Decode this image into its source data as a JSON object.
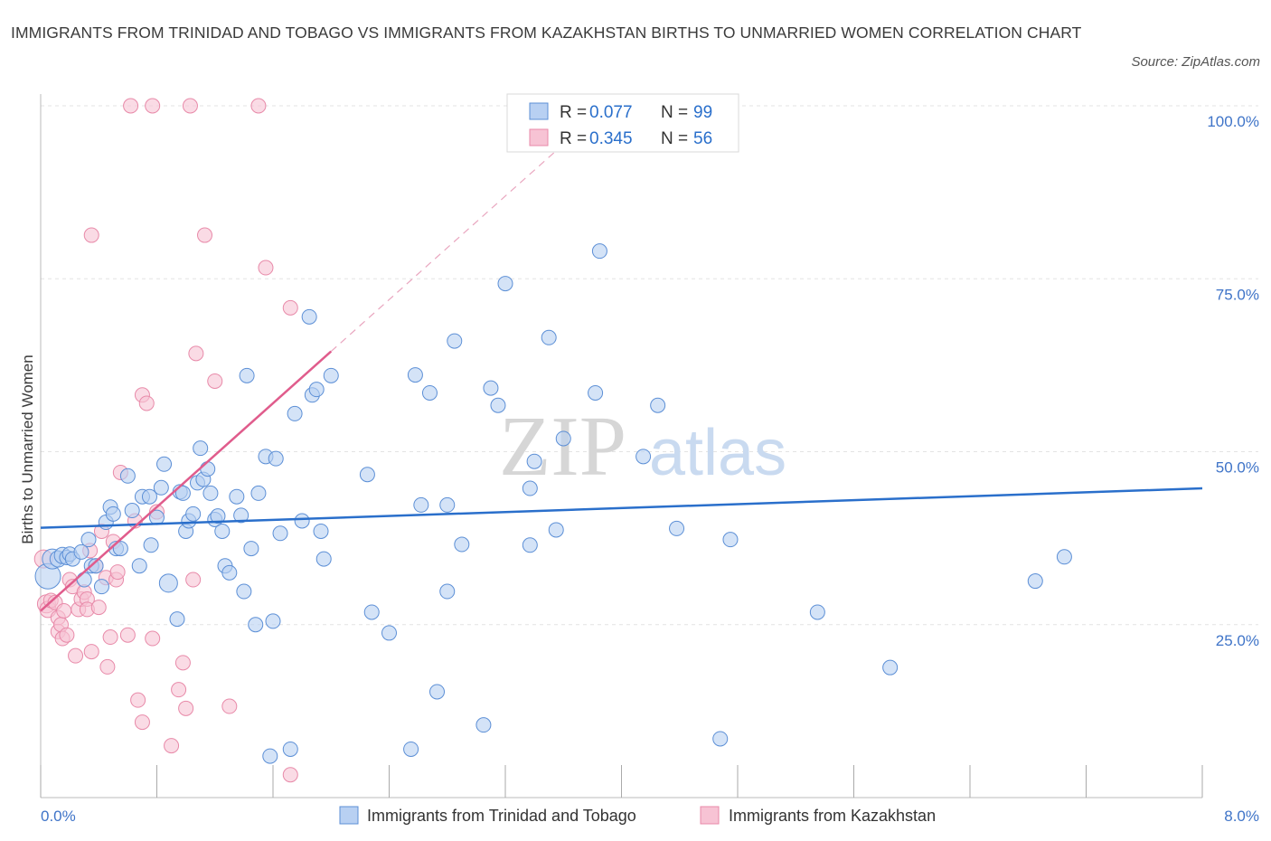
{
  "title": "IMMIGRANTS FROM TRINIDAD AND TOBAGO VS IMMIGRANTS FROM KAZAKHSTAN BIRTHS TO UNMARRIED WOMEN CORRELATION CHART",
  "source": "Source: ZipAtlas.com",
  "watermark": {
    "zip": "ZIP",
    "atlas": "atlas"
  },
  "colors": {
    "blue": "#2a6fcb",
    "blue_fill": "#b8d0f2",
    "blue_stroke": "#5c8fd6",
    "pink": "#e05c8c",
    "pink_fill": "#f7c3d4",
    "pink_stroke": "#e88aa9",
    "tick_text": "#3f74c8"
  },
  "legend_stats": [
    {
      "series": "Immigrants from Trinidad and Tobago",
      "r_label": "R =",
      "r": "0.077",
      "n_label": "N =",
      "n": "99"
    },
    {
      "series": "Immigrants from Kazakhstan",
      "r_label": "R =",
      "r": "0.345",
      "n_label": "N =",
      "n": "56"
    }
  ],
  "chart_data": {
    "type": "scatter",
    "title": "IMMIGRANTS FROM TRINIDAD AND TOBAGO VS IMMIGRANTS FROM KAZAKHSTAN BIRTHS TO UNMARRIED WOMEN CORRELATION CHART",
    "xlabel": "",
    "ylabel": "Births to Unmarried Women",
    "xlim": [
      0,
      8
    ],
    "ylim": [
      0,
      100
    ],
    "x_tick_labels": [
      "0.0%",
      "8.0%"
    ],
    "y_tick_labels": [
      "25.0%",
      "50.0%",
      "75.0%",
      "100.0%"
    ],
    "grid": true,
    "legend": "bottom-center",
    "series": [
      {
        "name": "Immigrants from Trinidad and Tobago",
        "color": "#2a6fcb",
        "trend": {
          "x": [
            0,
            8
          ],
          "y": [
            39.0,
            44.7
          ]
        },
        "points": [
          [
            0.05,
            32,
            14
          ],
          [
            0.08,
            34.5,
            11
          ],
          [
            0.12,
            34.5,
            9
          ],
          [
            0.15,
            35,
            9
          ],
          [
            0.18,
            34.7,
            8
          ],
          [
            0.2,
            35.2,
            8
          ],
          [
            0.22,
            34.5,
            8
          ],
          [
            0.28,
            35.5,
            8
          ],
          [
            0.3,
            31.5,
            8
          ],
          [
            0.33,
            37.3,
            8
          ],
          [
            0.35,
            33.5,
            8
          ],
          [
            0.38,
            33.5,
            8
          ],
          [
            0.42,
            30.5,
            8
          ],
          [
            0.45,
            39.8,
            8
          ],
          [
            0.48,
            42,
            8
          ],
          [
            0.5,
            41,
            8
          ],
          [
            0.52,
            36,
            8
          ],
          [
            0.55,
            36,
            8
          ],
          [
            0.6,
            46.5,
            8
          ],
          [
            0.63,
            41.5,
            8
          ],
          [
            0.68,
            33.5,
            8
          ],
          [
            0.7,
            43.5,
            8
          ],
          [
            0.75,
            43.5,
            8
          ],
          [
            0.76,
            36.5,
            8
          ],
          [
            0.8,
            40.5,
            8
          ],
          [
            0.83,
            44.8,
            8
          ],
          [
            0.85,
            48.2,
            8
          ],
          [
            0.88,
            31,
            10
          ],
          [
            0.94,
            25.8,
            8
          ],
          [
            0.96,
            44.2,
            8
          ],
          [
            0.98,
            44,
            8
          ],
          [
            1.0,
            38.5,
            8
          ],
          [
            1.02,
            40,
            8
          ],
          [
            1.05,
            41,
            8
          ],
          [
            1.08,
            45.5,
            8
          ],
          [
            1.1,
            50.5,
            8
          ],
          [
            1.12,
            46,
            8
          ],
          [
            1.15,
            47.5,
            8
          ],
          [
            1.17,
            44,
            8
          ],
          [
            1.2,
            40.2,
            8
          ],
          [
            1.22,
            40.7,
            8
          ],
          [
            1.25,
            38.5,
            8
          ],
          [
            1.27,
            33.5,
            8
          ],
          [
            1.3,
            32.5,
            8
          ],
          [
            1.35,
            43.5,
            8
          ],
          [
            1.38,
            40.8,
            8
          ],
          [
            1.4,
            29.8,
            8
          ],
          [
            1.42,
            61,
            8
          ],
          [
            1.45,
            36,
            8
          ],
          [
            1.48,
            25,
            8
          ],
          [
            1.5,
            44,
            8
          ],
          [
            1.55,
            49.3,
            8
          ],
          [
            1.58,
            6,
            8
          ],
          [
            1.6,
            25.5,
            8
          ],
          [
            1.62,
            49,
            8
          ],
          [
            1.65,
            38.2,
            8
          ],
          [
            1.72,
            7,
            8
          ],
          [
            1.75,
            55.5,
            8
          ],
          [
            1.8,
            40,
            8
          ],
          [
            1.85,
            69.5,
            8
          ],
          [
            1.87,
            58.2,
            8
          ],
          [
            1.9,
            59,
            8
          ],
          [
            1.93,
            38.5,
            8
          ],
          [
            1.95,
            34.5,
            8
          ],
          [
            2.0,
            61,
            8
          ],
          [
            2.25,
            46.7,
            8
          ],
          [
            2.28,
            26.8,
            8
          ],
          [
            2.4,
            23.8,
            8
          ],
          [
            2.55,
            7,
            8
          ],
          [
            2.58,
            61.1,
            8
          ],
          [
            2.62,
            42.3,
            8
          ],
          [
            2.68,
            58.5,
            8
          ],
          [
            2.73,
            15.3,
            8
          ],
          [
            2.8,
            29.8,
            8
          ],
          [
            2.8,
            42.3,
            8
          ],
          [
            2.85,
            66,
            8
          ],
          [
            2.9,
            36.6,
            8
          ],
          [
            3.05,
            10.5,
            8
          ],
          [
            3.1,
            59.2,
            8
          ],
          [
            3.15,
            56.7,
            8
          ],
          [
            3.2,
            74.3,
            8
          ],
          [
            3.37,
            44.7,
            8
          ],
          [
            3.37,
            36.5,
            8
          ],
          [
            3.4,
            48.6,
            8
          ],
          [
            3.5,
            66.5,
            8
          ],
          [
            3.55,
            38.7,
            8
          ],
          [
            3.6,
            51.9,
            8
          ],
          [
            3.82,
            58.5,
            8
          ],
          [
            3.85,
            79,
            8
          ],
          [
            4.15,
            49.3,
            8
          ],
          [
            4.25,
            56.7,
            8
          ],
          [
            4.38,
            38.9,
            8
          ],
          [
            4.68,
            8.5,
            8
          ],
          [
            4.75,
            37.3,
            8
          ],
          [
            5.35,
            26.8,
            8
          ],
          [
            5.85,
            18.8,
            8
          ],
          [
            6.85,
            31.3,
            8
          ],
          [
            7.05,
            34.8,
            8
          ]
        ]
      },
      {
        "name": "Immigrants from Kazakhstan",
        "color": "#e05c8c",
        "trend": {
          "x": [
            0,
            2.0
          ],
          "y": [
            27.0,
            64.5
          ]
        },
        "trend_ext": {
          "x": [
            2.0,
            3.55
          ],
          "y": [
            64.5,
            93.5
          ]
        },
        "points": [
          [
            0.02,
            34.5,
            10
          ],
          [
            0.04,
            28,
            10
          ],
          [
            0.05,
            27.2,
            9
          ],
          [
            0.07,
            28.5,
            8
          ],
          [
            0.1,
            28.2,
            8
          ],
          [
            0.12,
            26,
            8
          ],
          [
            0.12,
            24,
            8
          ],
          [
            0.14,
            25,
            8
          ],
          [
            0.15,
            23,
            8
          ],
          [
            0.16,
            27,
            8
          ],
          [
            0.18,
            23.5,
            8
          ],
          [
            0.2,
            31.5,
            8
          ],
          [
            0.22,
            30.5,
            8
          ],
          [
            0.24,
            20.5,
            8
          ],
          [
            0.26,
            27.2,
            8
          ],
          [
            0.28,
            28.7,
            8
          ],
          [
            0.3,
            29.7,
            8
          ],
          [
            0.32,
            28.7,
            8
          ],
          [
            0.32,
            27.2,
            8
          ],
          [
            0.34,
            35.7,
            8
          ],
          [
            0.35,
            21.1,
            8
          ],
          [
            0.35,
            81.3,
            8
          ],
          [
            0.38,
            33.5,
            8
          ],
          [
            0.4,
            27.5,
            8
          ],
          [
            0.42,
            38.5,
            8
          ],
          [
            0.45,
            31.8,
            8
          ],
          [
            0.46,
            18.9,
            8
          ],
          [
            0.48,
            23.2,
            8
          ],
          [
            0.5,
            37,
            8
          ],
          [
            0.52,
            31.5,
            8
          ],
          [
            0.53,
            32.6,
            8
          ],
          [
            0.55,
            47,
            8
          ],
          [
            0.6,
            23.5,
            8
          ],
          [
            0.62,
            100,
            8
          ],
          [
            0.65,
            40,
            8
          ],
          [
            0.67,
            14.1,
            8
          ],
          [
            0.7,
            10.9,
            8
          ],
          [
            0.7,
            58.2,
            8
          ],
          [
            0.73,
            57,
            8
          ],
          [
            0.77,
            100,
            8
          ],
          [
            0.77,
            23,
            8
          ],
          [
            0.8,
            41.3,
            8
          ],
          [
            0.9,
            7.5,
            8
          ],
          [
            0.95,
            15.6,
            8
          ],
          [
            0.98,
            19.5,
            8
          ],
          [
            1.0,
            12.9,
            8
          ],
          [
            1.03,
            100,
            8
          ],
          [
            1.05,
            31.5,
            8
          ],
          [
            1.07,
            64.2,
            8
          ],
          [
            1.13,
            81.3,
            8
          ],
          [
            1.2,
            60.2,
            8
          ],
          [
            1.3,
            13.2,
            8
          ],
          [
            1.5,
            100,
            8
          ],
          [
            1.55,
            76.6,
            8
          ],
          [
            1.72,
            3.3,
            8
          ],
          [
            1.72,
            70.8,
            8
          ]
        ]
      }
    ]
  },
  "legend_bottom": [
    "Immigrants from Trinidad and Tobago",
    "Immigrants from Kazakhstan"
  ]
}
